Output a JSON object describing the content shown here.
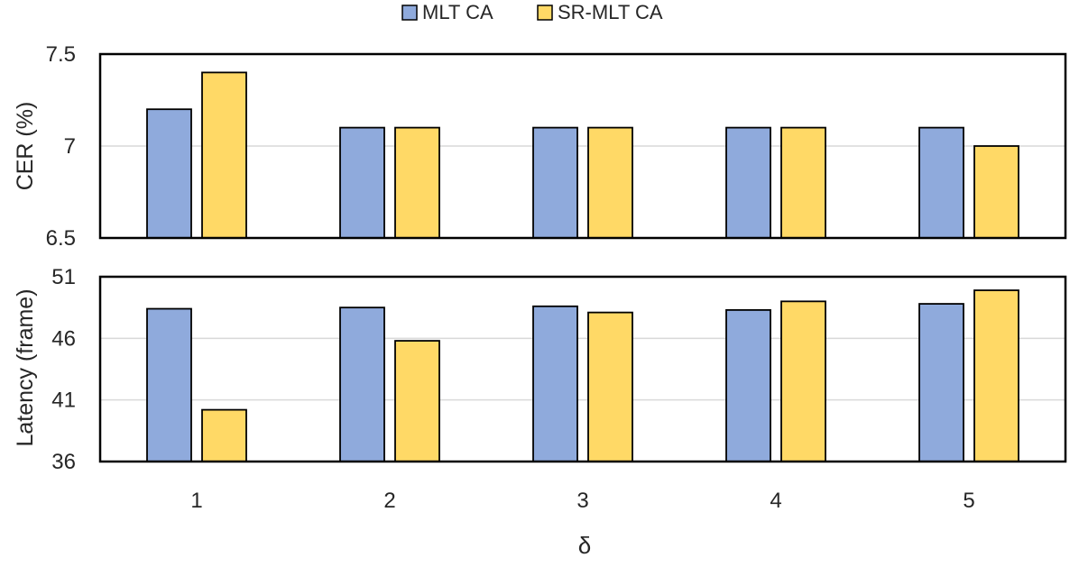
{
  "legend": [
    {
      "name": "MLT CA",
      "color": "#8FAADC"
    },
    {
      "name": "SR-MLT CA",
      "color": "#FFD966"
    }
  ],
  "xlabel": "δ",
  "chart_data": [
    {
      "type": "bar",
      "title": "",
      "categories": [
        "1",
        "2",
        "3",
        "4",
        "5"
      ],
      "series": [
        {
          "name": "MLT CA",
          "values": [
            7.2,
            7.1,
            7.1,
            7.1,
            7.1
          ],
          "color": "#8FAADC"
        },
        {
          "name": "SR-MLT CA",
          "values": [
            7.4,
            7.1,
            7.1,
            7.1,
            7.0
          ],
          "color": "#FFD966"
        }
      ],
      "ylabel": "CER (%)",
      "ylim": [
        6.5,
        7.5
      ],
      "yticks": [
        6.5,
        7,
        7.5
      ],
      "ytick_labels": [
        "6.5",
        "7",
        "7.5"
      ],
      "grid": true,
      "legend_position": "top-center"
    },
    {
      "type": "bar",
      "title": "",
      "categories": [
        "1",
        "2",
        "3",
        "4",
        "5"
      ],
      "series": [
        {
          "name": "MLT CA",
          "values": [
            48.4,
            48.5,
            48.6,
            48.3,
            48.8
          ],
          "color": "#8FAADC"
        },
        {
          "name": "SR-MLT CA",
          "values": [
            40.2,
            45.8,
            48.1,
            49.0,
            49.9
          ],
          "color": "#FFD966"
        }
      ],
      "xlabel": "δ",
      "ylabel": "Latency (frame)",
      "ylim": [
        36,
        51
      ],
      "yticks": [
        36,
        41,
        46,
        51
      ],
      "ytick_labels": [
        "36",
        "41",
        "46",
        "51"
      ],
      "grid": true
    }
  ]
}
